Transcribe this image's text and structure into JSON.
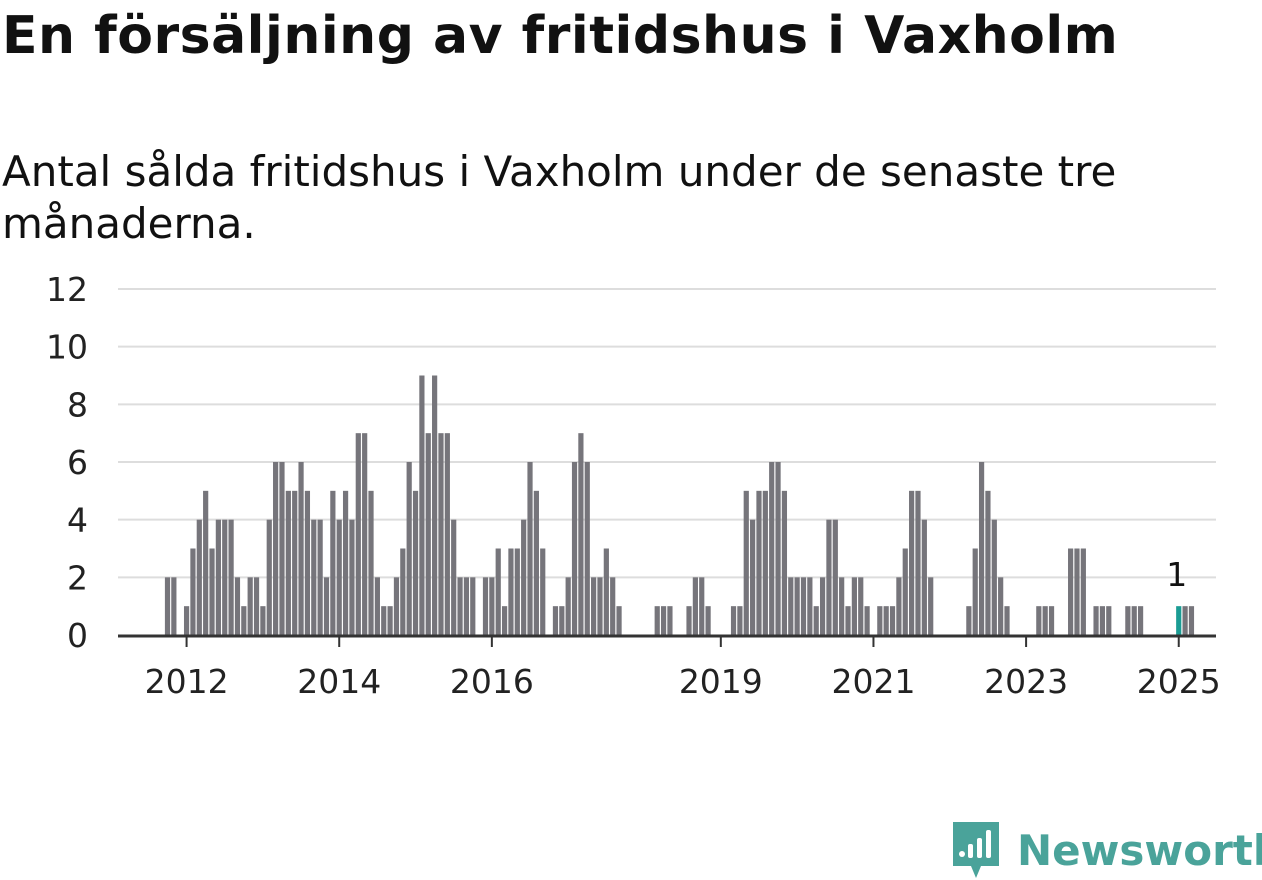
{
  "title": "En försäljning av fritidshus i Vaxholm",
  "subtitle": "Antal sålda fritidshus i Vaxholm under de senaste tre månaderna.",
  "brand": "Newsworthy",
  "colors": {
    "bar": "#76757b",
    "highlight": "#1a9c94",
    "grid": "#dddddd",
    "axis": "#333333",
    "brand": "#4aa39a"
  },
  "chart_data": {
    "type": "bar",
    "title": "En försäljning av fritidshus i Vaxholm",
    "subtitle": "Antal sålda fritidshus i Vaxholm under de senaste tre månaderna.",
    "xlabel": "",
    "ylabel": "",
    "ylim": [
      0,
      12
    ],
    "yticks": [
      "0",
      "2",
      "4",
      "6",
      "8",
      "10",
      "12"
    ],
    "xticks": [
      {
        "label": "2012",
        "year": 2012
      },
      {
        "label": "2014",
        "year": 2014
      },
      {
        "label": "2016",
        "year": 2016
      },
      {
        "label": "2019",
        "year": 2019
      },
      {
        "label": "2021",
        "year": 2021
      },
      {
        "label": "2023",
        "year": 2023
      },
      {
        "label": "2025",
        "year": 2025
      }
    ],
    "grid": true,
    "frequency": "monthly",
    "start": "2011-10",
    "values": [
      2,
      2,
      0,
      1,
      3,
      4,
      5,
      3,
      4,
      4,
      4,
      2,
      1,
      2,
      2,
      1,
      4,
      6,
      6,
      5,
      5,
      6,
      5,
      4,
      4,
      2,
      5,
      4,
      5,
      4,
      7,
      7,
      5,
      2,
      1,
      1,
      2,
      3,
      6,
      5,
      9,
      7,
      9,
      7,
      7,
      4,
      2,
      2,
      2,
      0,
      2,
      2,
      3,
      1,
      3,
      3,
      4,
      6,
      5,
      3,
      0,
      1,
      1,
      2,
      6,
      7,
      6,
      2,
      2,
      3,
      2,
      1,
      0,
      0,
      0,
      0,
      0,
      1,
      1,
      1,
      0,
      0,
      1,
      2,
      2,
      1,
      0,
      0,
      0,
      1,
      1,
      5,
      4,
      5,
      5,
      6,
      6,
      5,
      2,
      2,
      2,
      2,
      1,
      2,
      4,
      4,
      2,
      1,
      2,
      2,
      1,
      0,
      1,
      1,
      1,
      2,
      3,
      5,
      5,
      4,
      2,
      0,
      0,
      0,
      0,
      0,
      1,
      3,
      6,
      5,
      4,
      2,
      1,
      0,
      0,
      0,
      0,
      1,
      1,
      1,
      0,
      0,
      3,
      3,
      3,
      0,
      1,
      1,
      1,
      0,
      0,
      1,
      1,
      1,
      0,
      0,
      0,
      0,
      0,
      1,
      1,
      1
    ],
    "highlight": {
      "date": "2025-01",
      "value": 1,
      "label": "1"
    }
  }
}
